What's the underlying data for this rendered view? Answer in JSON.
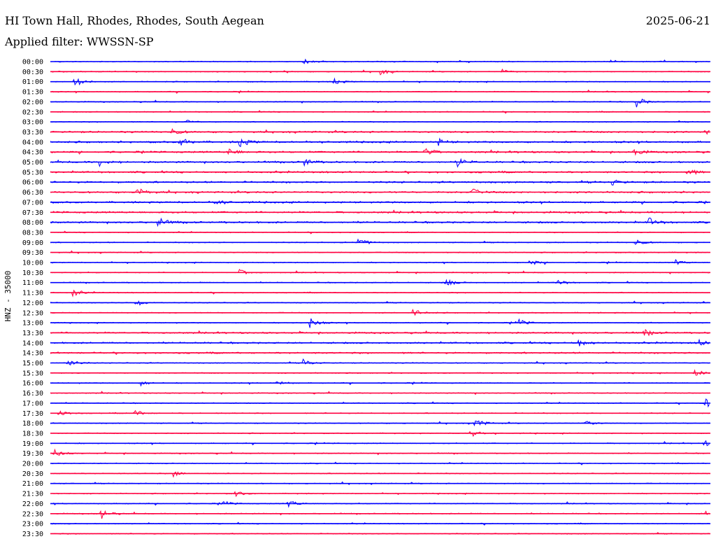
{
  "header": {
    "station": "HI Town Hall, Rhodes, Rhodes, South Aegean",
    "date": "2025-06-21",
    "filter_label": "Applied filter:",
    "filter_value": "WWSSN-SP"
  },
  "chart_data": {
    "type": "line",
    "title": "HI Town Hall, Rhodes, Rhodes, South Aegean",
    "date": "2025-06-21",
    "filter": "WWSSN-SP",
    "ylabel": "HNZ - 35000",
    "xlabel": "",
    "row_labels": [
      "00:00",
      "00:30",
      "01:00",
      "01:30",
      "02:00",
      "02:30",
      "03:00",
      "03:30",
      "04:00",
      "04:30",
      "05:00",
      "05:30",
      "06:00",
      "06:30",
      "07:00",
      "07:30",
      "08:00",
      "08:30",
      "09:00",
      "09:30",
      "10:00",
      "10:30",
      "11:00",
      "11:30",
      "12:00",
      "12:30",
      "13:00",
      "13:30",
      "14:00",
      "14:30",
      "15:00",
      "15:30",
      "16:00",
      "16:30",
      "17:00",
      "17:30",
      "18:00",
      "18:30",
      "19:00",
      "19:30",
      "20:00",
      "20:30",
      "21:00",
      "21:30",
      "22:00",
      "22:30",
      "23:00",
      "23:30"
    ],
    "trace_colors": [
      "#0000ff",
      "#ff0040"
    ],
    "row_minutes": 30,
    "grid": false,
    "events": [
      {
        "row": "00:00",
        "minute": 11.5,
        "amplitude": 0.45
      },
      {
        "row": "00:30",
        "minute": 15.0,
        "amplitude": 0.5
      },
      {
        "row": "00:30",
        "minute": 20.5,
        "amplitude": 0.35
      },
      {
        "row": "01:00",
        "minute": 1.1,
        "amplitude": 0.9
      },
      {
        "row": "01:00",
        "minute": 12.9,
        "amplitude": 0.5
      },
      {
        "row": "02:00",
        "minute": 26.6,
        "amplitude": 1.0
      },
      {
        "row": "03:00",
        "minute": 6.2,
        "amplitude": 0.45
      },
      {
        "row": "03:30",
        "minute": 5.5,
        "amplitude": 0.6
      },
      {
        "row": "03:30",
        "minute": 29.8,
        "amplitude": 0.5
      },
      {
        "row": "04:00",
        "minute": 5.9,
        "amplitude": 0.8
      },
      {
        "row": "04:00",
        "minute": 8.6,
        "amplitude": 0.9
      },
      {
        "row": "04:00",
        "minute": 17.6,
        "amplitude": 0.6
      },
      {
        "row": "04:30",
        "minute": 8.1,
        "amplitude": 0.7
      },
      {
        "row": "04:30",
        "minute": 17.0,
        "amplitude": 0.7
      },
      {
        "row": "04:30",
        "minute": 26.5,
        "amplitude": 0.6
      },
      {
        "row": "05:00",
        "minute": 2.2,
        "amplitude": 0.7
      },
      {
        "row": "05:00",
        "minute": 11.5,
        "amplitude": 0.7
      },
      {
        "row": "05:00",
        "minute": 18.5,
        "amplitude": 0.8
      },
      {
        "row": "05:30",
        "minute": 28.9,
        "amplitude": 0.8
      },
      {
        "row": "06:00",
        "minute": 25.5,
        "amplitude": 0.5
      },
      {
        "row": "06:30",
        "minute": 3.9,
        "amplitude": 0.9
      },
      {
        "row": "06:30",
        "minute": 19.1,
        "amplitude": 0.7
      },
      {
        "row": "07:00",
        "minute": 7.5,
        "amplitude": 0.5
      },
      {
        "row": "08:00",
        "minute": 4.9,
        "amplitude": 0.8
      },
      {
        "row": "08:00",
        "minute": 27.2,
        "amplitude": 0.8
      },
      {
        "row": "09:00",
        "minute": 14.0,
        "amplitude": 0.9
      },
      {
        "row": "09:00",
        "minute": 26.6,
        "amplitude": 0.6
      },
      {
        "row": "10:00",
        "minute": 21.8,
        "amplitude": 0.5
      },
      {
        "row": "10:00",
        "minute": 28.4,
        "amplitude": 0.5
      },
      {
        "row": "10:30",
        "minute": 8.6,
        "amplitude": 0.5
      },
      {
        "row": "11:00",
        "minute": 18.0,
        "amplitude": 0.7
      },
      {
        "row": "11:00",
        "minute": 23.0,
        "amplitude": 0.6
      },
      {
        "row": "11:30",
        "minute": 1.0,
        "amplitude": 0.6
      },
      {
        "row": "12:00",
        "minute": 3.9,
        "amplitude": 0.6
      },
      {
        "row": "12:30",
        "minute": 16.5,
        "amplitude": 0.7
      },
      {
        "row": "13:00",
        "minute": 11.8,
        "amplitude": 0.9
      },
      {
        "row": "13:00",
        "minute": 21.2,
        "amplitude": 0.8
      },
      {
        "row": "13:30",
        "minute": 27.0,
        "amplitude": 0.6
      },
      {
        "row": "14:00",
        "minute": 24.0,
        "amplitude": 0.6
      },
      {
        "row": "14:00",
        "minute": 29.5,
        "amplitude": 0.6
      },
      {
        "row": "15:00",
        "minute": 0.8,
        "amplitude": 0.8
      },
      {
        "row": "15:00",
        "minute": 11.5,
        "amplitude": 0.6
      },
      {
        "row": "15:30",
        "minute": 29.3,
        "amplitude": 0.6
      },
      {
        "row": "16:00",
        "minute": 4.1,
        "amplitude": 0.5
      },
      {
        "row": "16:00",
        "minute": 10.3,
        "amplitude": 0.5
      },
      {
        "row": "17:00",
        "minute": 29.7,
        "amplitude": 0.9
      },
      {
        "row": "17:30",
        "minute": 0.4,
        "amplitude": 0.6
      },
      {
        "row": "17:30",
        "minute": 3.8,
        "amplitude": 0.6
      },
      {
        "row": "18:00",
        "minute": 19.3,
        "amplitude": 1.0
      },
      {
        "row": "18:00",
        "minute": 24.3,
        "amplitude": 0.5
      },
      {
        "row": "18:30",
        "minute": 19.1,
        "amplitude": 0.7
      },
      {
        "row": "19:00",
        "minute": 29.7,
        "amplitude": 0.5
      },
      {
        "row": "19:30",
        "minute": 0.2,
        "amplitude": 0.7
      },
      {
        "row": "20:30",
        "minute": 5.6,
        "amplitude": 0.5
      },
      {
        "row": "21:30",
        "minute": 8.4,
        "amplitude": 0.5
      },
      {
        "row": "22:00",
        "minute": 7.8,
        "amplitude": 0.5
      },
      {
        "row": "22:00",
        "minute": 10.8,
        "amplitude": 0.7
      },
      {
        "row": "22:30",
        "minute": 2.3,
        "amplitude": 0.9
      },
      {
        "row": "22:30",
        "minute": 29.8,
        "amplitude": 0.5
      }
    ]
  }
}
